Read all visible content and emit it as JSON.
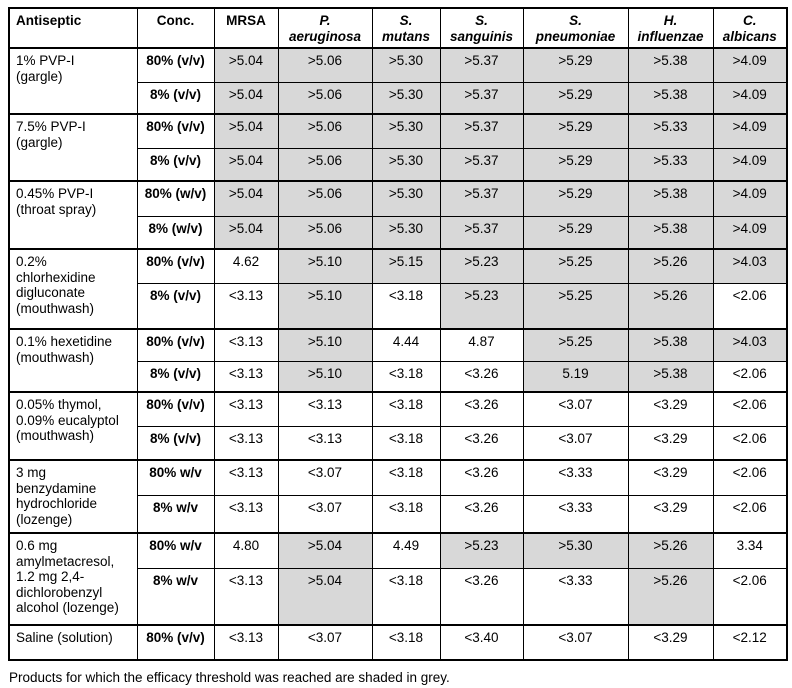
{
  "colors": {
    "shaded_cell": "#d8d8d8",
    "border": "#000000",
    "background": "#ffffff"
  },
  "table": {
    "columns": [
      {
        "key": "antiseptic",
        "label": "Antiseptic",
        "italic": false
      },
      {
        "key": "conc",
        "label": "Conc.",
        "italic": false
      },
      {
        "key": "mrsa",
        "label": "MRSA",
        "italic": false
      },
      {
        "key": "p-aeruginosa",
        "label": "P.\naeruginosa",
        "italic": true
      },
      {
        "key": "s-mutans",
        "label": "S.\nmutans",
        "italic": true
      },
      {
        "key": "s-sanguinis",
        "label": "S.\nsanguinis",
        "italic": true
      },
      {
        "key": "s-pneumoniae",
        "label": "S.\npneumoniae",
        "italic": true
      },
      {
        "key": "h-influenzae",
        "label": "H.\ninfluenzae",
        "italic": true
      },
      {
        "key": "c-albicans",
        "label": "C.\nalbicans",
        "italic": true
      }
    ],
    "groups": [
      {
        "antiseptic": "1% PVP-I\n(gargle)",
        "rows": [
          {
            "conc": "80% (v/v)",
            "values": [
              ">5.04",
              ">5.06",
              ">5.30",
              ">5.37",
              ">5.29",
              ">5.38",
              ">4.09"
            ],
            "shaded": [
              true,
              true,
              true,
              true,
              true,
              true,
              true
            ]
          },
          {
            "conc": "8% (v/v)",
            "values": [
              ">5.04",
              ">5.06",
              ">5.30",
              ">5.37",
              ">5.29",
              ">5.38",
              ">4.09"
            ],
            "shaded": [
              true,
              true,
              true,
              true,
              true,
              true,
              true
            ]
          }
        ]
      },
      {
        "antiseptic": "7.5% PVP-I\n(gargle)",
        "rows": [
          {
            "conc": "80% (v/v)",
            "values": [
              ">5.04",
              ">5.06",
              ">5.30",
              ">5.37",
              ">5.29",
              ">5.33",
              ">4.09"
            ],
            "shaded": [
              true,
              true,
              true,
              true,
              true,
              true,
              true
            ]
          },
          {
            "conc": "8% (v/v)",
            "values": [
              ">5.04",
              ">5.06",
              ">5.30",
              ">5.37",
              ">5.29",
              ">5.33",
              ">4.09"
            ],
            "shaded": [
              true,
              true,
              true,
              true,
              true,
              true,
              true
            ]
          }
        ]
      },
      {
        "antiseptic": "0.45% PVP-I\n(throat spray)",
        "rows": [
          {
            "conc": "80% (w/v)",
            "values": [
              ">5.04",
              ">5.06",
              ">5.30",
              ">5.37",
              ">5.29",
              ">5.38",
              ">4.09"
            ],
            "shaded": [
              true,
              true,
              true,
              true,
              true,
              true,
              true
            ]
          },
          {
            "conc": "8% (w/v)",
            "values": [
              ">5.04",
              ">5.06",
              ">5.30",
              ">5.37",
              ">5.29",
              ">5.38",
              ">4.09"
            ],
            "shaded": [
              true,
              true,
              true,
              true,
              true,
              true,
              true
            ]
          }
        ]
      },
      {
        "antiseptic": "0.2%\nchlorhexidine\ndigluconate\n(mouthwash)",
        "rows": [
          {
            "conc": "80% (v/v)",
            "values": [
              "4.62",
              ">5.10",
              ">5.15",
              ">5.23",
              ">5.25",
              ">5.26",
              ">4.03"
            ],
            "shaded": [
              false,
              true,
              true,
              true,
              true,
              true,
              true
            ]
          },
          {
            "conc": "8% (v/v)",
            "values": [
              "<3.13",
              ">5.10",
              "<3.18",
              ">5.23",
              ">5.25",
              ">5.26",
              "<2.06"
            ],
            "shaded": [
              false,
              true,
              false,
              true,
              true,
              true,
              false
            ]
          }
        ]
      },
      {
        "antiseptic": "0.1% hexetidine\n(mouthwash)",
        "rows": [
          {
            "conc": "80% (v/v)",
            "values": [
              "<3.13",
              ">5.10",
              "4.44",
              "4.87",
              ">5.25",
              ">5.38",
              ">4.03"
            ],
            "shaded": [
              false,
              true,
              false,
              false,
              true,
              true,
              true
            ]
          },
          {
            "conc": "8% (v/v)",
            "values": [
              "<3.13",
              ">5.10",
              "<3.18",
              "<3.26",
              "5.19",
              ">5.38",
              "<2.06"
            ],
            "shaded": [
              false,
              true,
              false,
              false,
              true,
              true,
              false
            ]
          }
        ]
      },
      {
        "antiseptic": "0.05% thymol,\n0.09% eucalyptol\n(mouthwash)",
        "rows": [
          {
            "conc": "80% (v/v)",
            "values": [
              "<3.13",
              "<3.13",
              "<3.18",
              "<3.26",
              "<3.07",
              "<3.29",
              "<2.06"
            ],
            "shaded": [
              false,
              false,
              false,
              false,
              false,
              false,
              false
            ]
          },
          {
            "conc": "8% (v/v)",
            "values": [
              "<3.13",
              "<3.13",
              "<3.18",
              "<3.26",
              "<3.07",
              "<3.29",
              "<2.06"
            ],
            "shaded": [
              false,
              false,
              false,
              false,
              false,
              false,
              false
            ]
          }
        ]
      },
      {
        "antiseptic": "3 mg\nbenzydamine\nhydrochloride\n(lozenge)",
        "rows": [
          {
            "conc": "80% w/v",
            "values": [
              "<3.13",
              "<3.07",
              "<3.18",
              "<3.26",
              "<3.33",
              "<3.29",
              "<2.06"
            ],
            "shaded": [
              false,
              false,
              false,
              false,
              false,
              false,
              false
            ]
          },
          {
            "conc": "8% w/v",
            "values": [
              "<3.13",
              "<3.07",
              "<3.18",
              "<3.26",
              "<3.33",
              "<3.29",
              "<2.06"
            ],
            "shaded": [
              false,
              false,
              false,
              false,
              false,
              false,
              false
            ]
          }
        ]
      },
      {
        "antiseptic": "0.6 mg\namylmetacresol,\n1.2 mg 2,4-\ndichlorobenzyl\nalcohol (lozenge)",
        "rows": [
          {
            "conc": "80% w/v",
            "values": [
              "4.80",
              ">5.04",
              "4.49",
              ">5.23",
              ">5.30",
              ">5.26",
              "3.34"
            ],
            "shaded": [
              false,
              true,
              false,
              true,
              true,
              true,
              false
            ]
          },
          {
            "conc": "8% w/v",
            "values": [
              "<3.13",
              ">5.04",
              "<3.18",
              "<3.26",
              "<3.33",
              ">5.26",
              "<2.06"
            ],
            "shaded": [
              false,
              true,
              false,
              false,
              false,
              true,
              false
            ]
          }
        ]
      },
      {
        "antiseptic": "Saline (solution)",
        "rows": [
          {
            "conc": "80% (v/v)",
            "values": [
              "<3.13",
              "<3.07",
              "<3.18",
              "<3.40",
              "<3.07",
              "<3.29",
              "<2.12"
            ],
            "shaded": [
              false,
              false,
              false,
              false,
              false,
              false,
              false
            ]
          }
        ]
      }
    ]
  },
  "footnote": "Products for which the efficacy threshold was reached are shaded in grey."
}
